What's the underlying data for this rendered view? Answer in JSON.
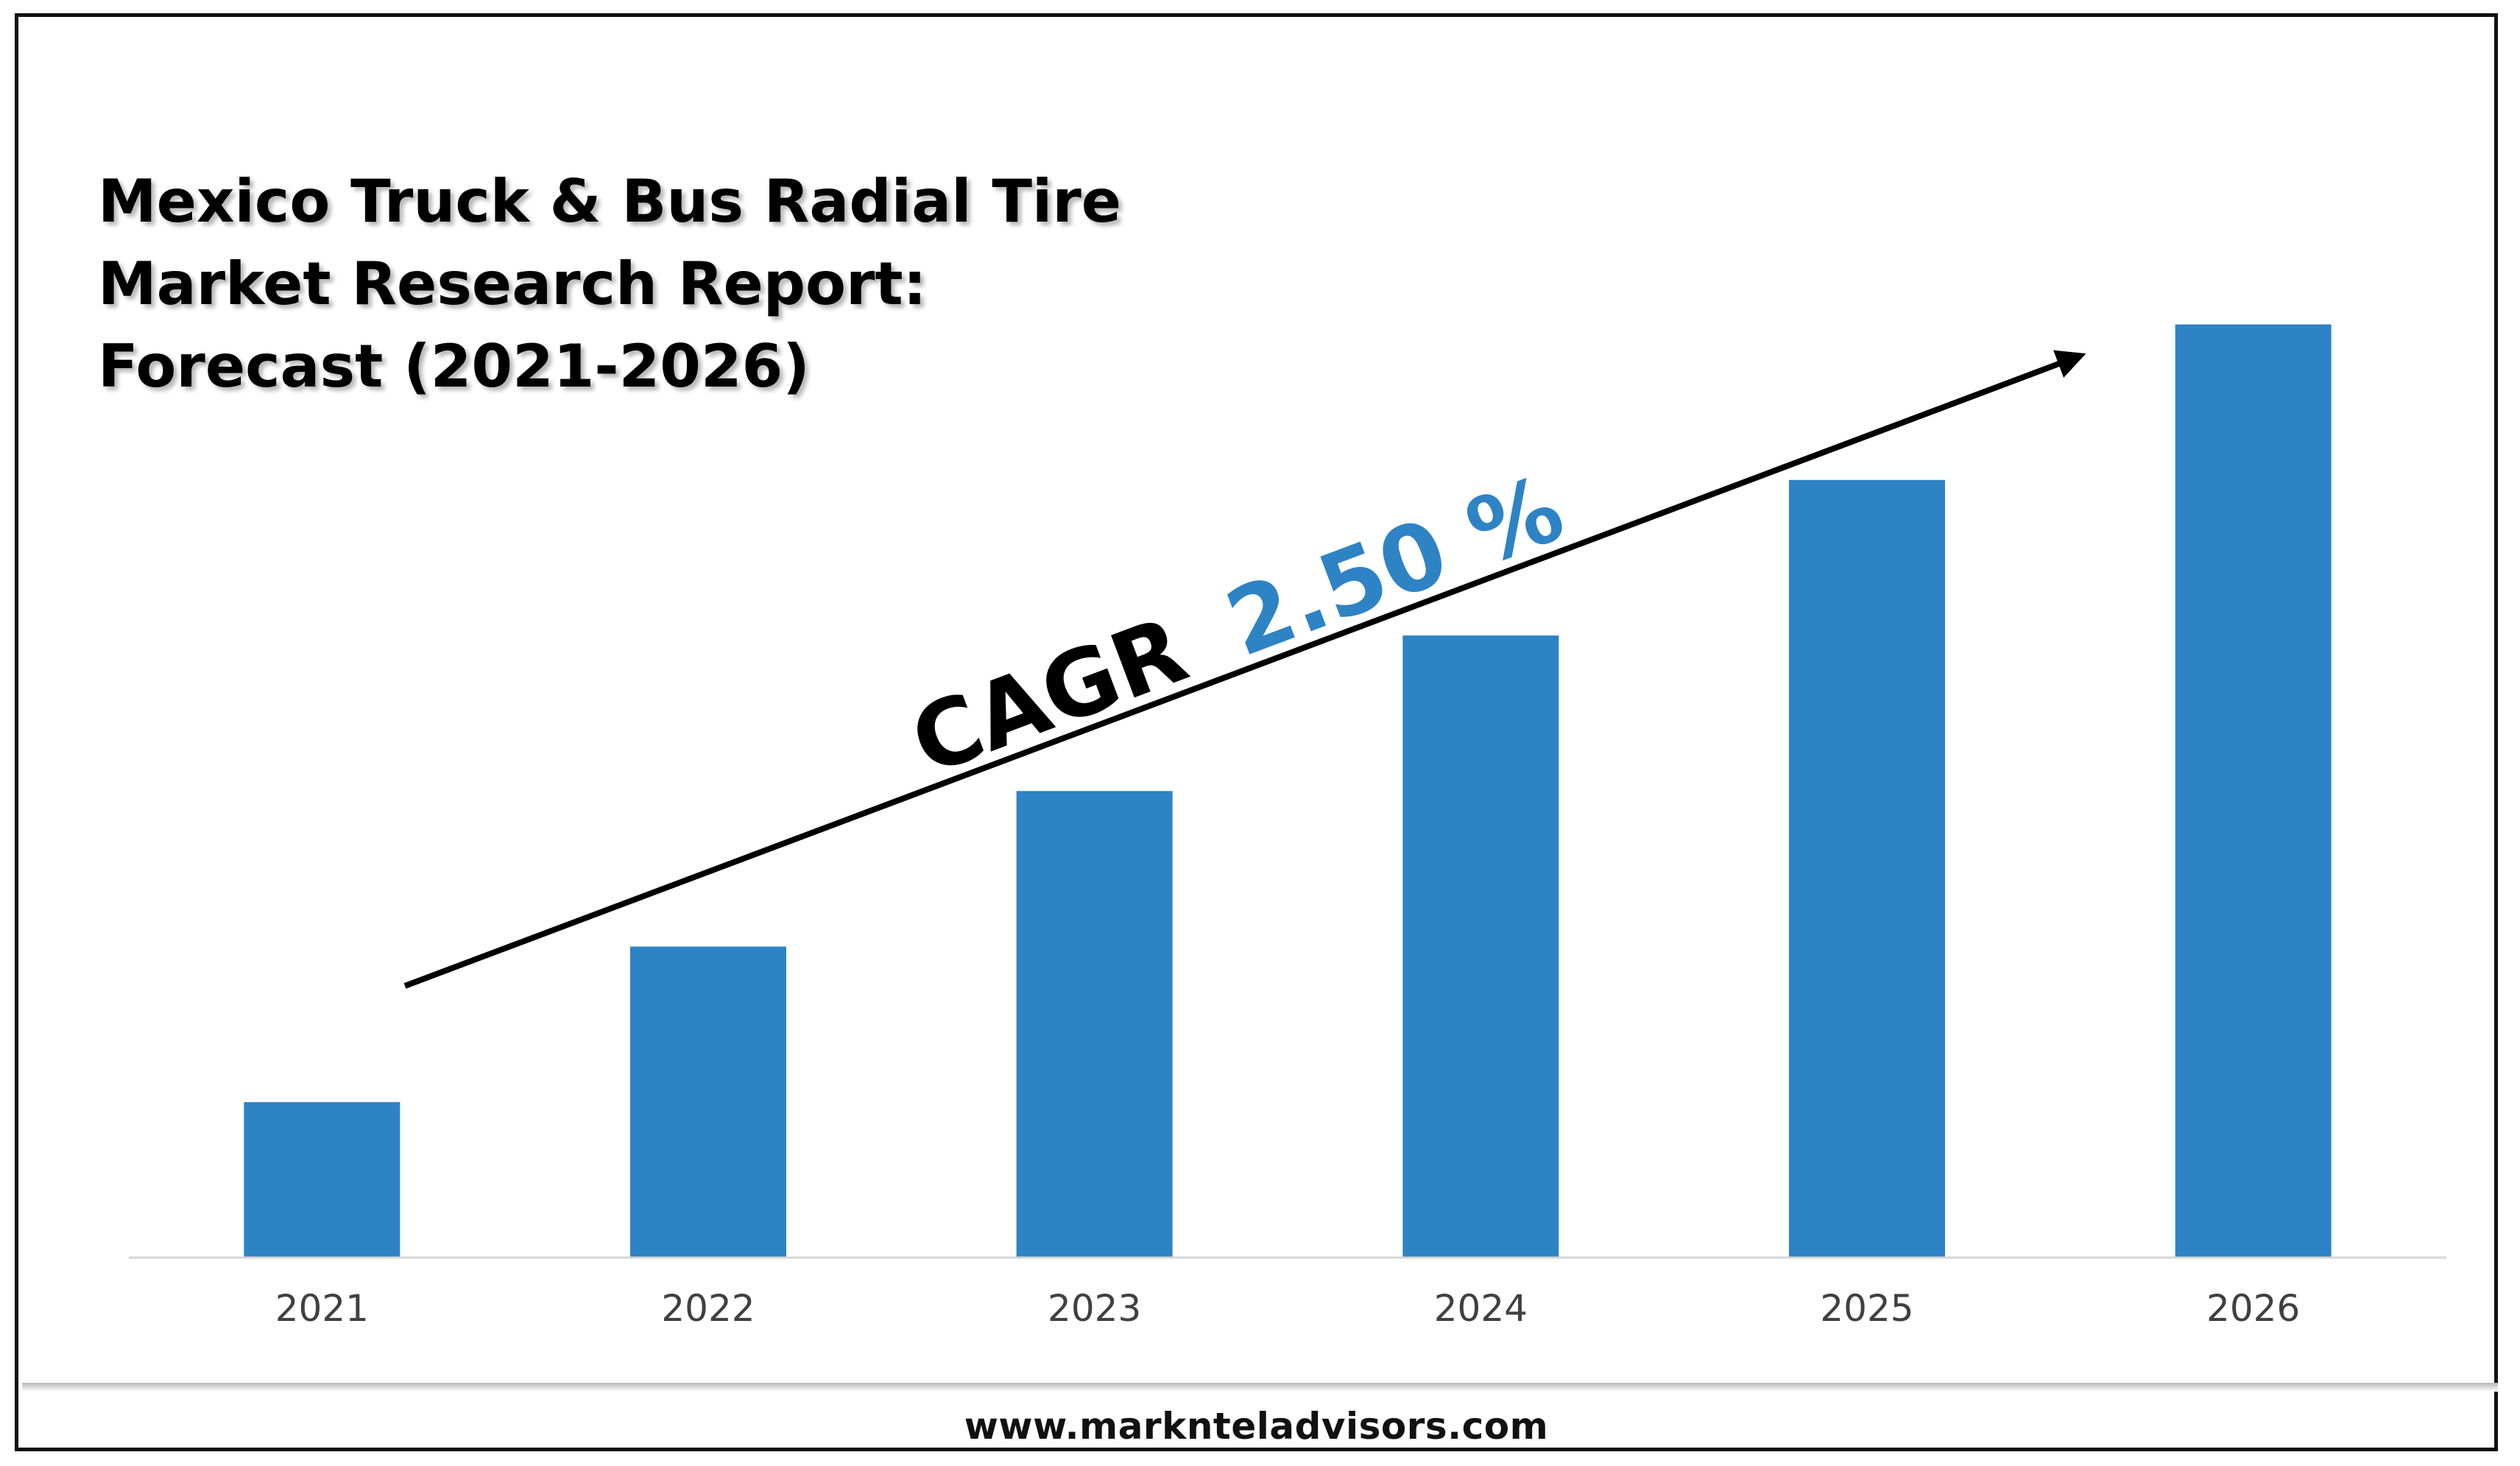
{
  "chart_data": {
    "type": "bar",
    "title_lines": [
      "Mexico Truck & Bus Radial Tire",
      "Market Research Report:",
      "Forecast (2021-2026)"
    ],
    "categories": [
      "2021",
      "2022",
      "2023",
      "2024",
      "2025",
      "2026"
    ],
    "values": [
      1.0,
      2.0,
      3.0,
      4.0,
      5.0,
      6.0
    ],
    "ylim": [
      0,
      6.5
    ],
    "grid": false,
    "bar_color": "#2e83c5",
    "annotation": {
      "prefix": "CAGR",
      "value": "2.50 %",
      "prefix_color": "#000000",
      "value_color": "#2e83c5"
    }
  },
  "footer": {
    "website": "www.marknteladvisors.com"
  }
}
